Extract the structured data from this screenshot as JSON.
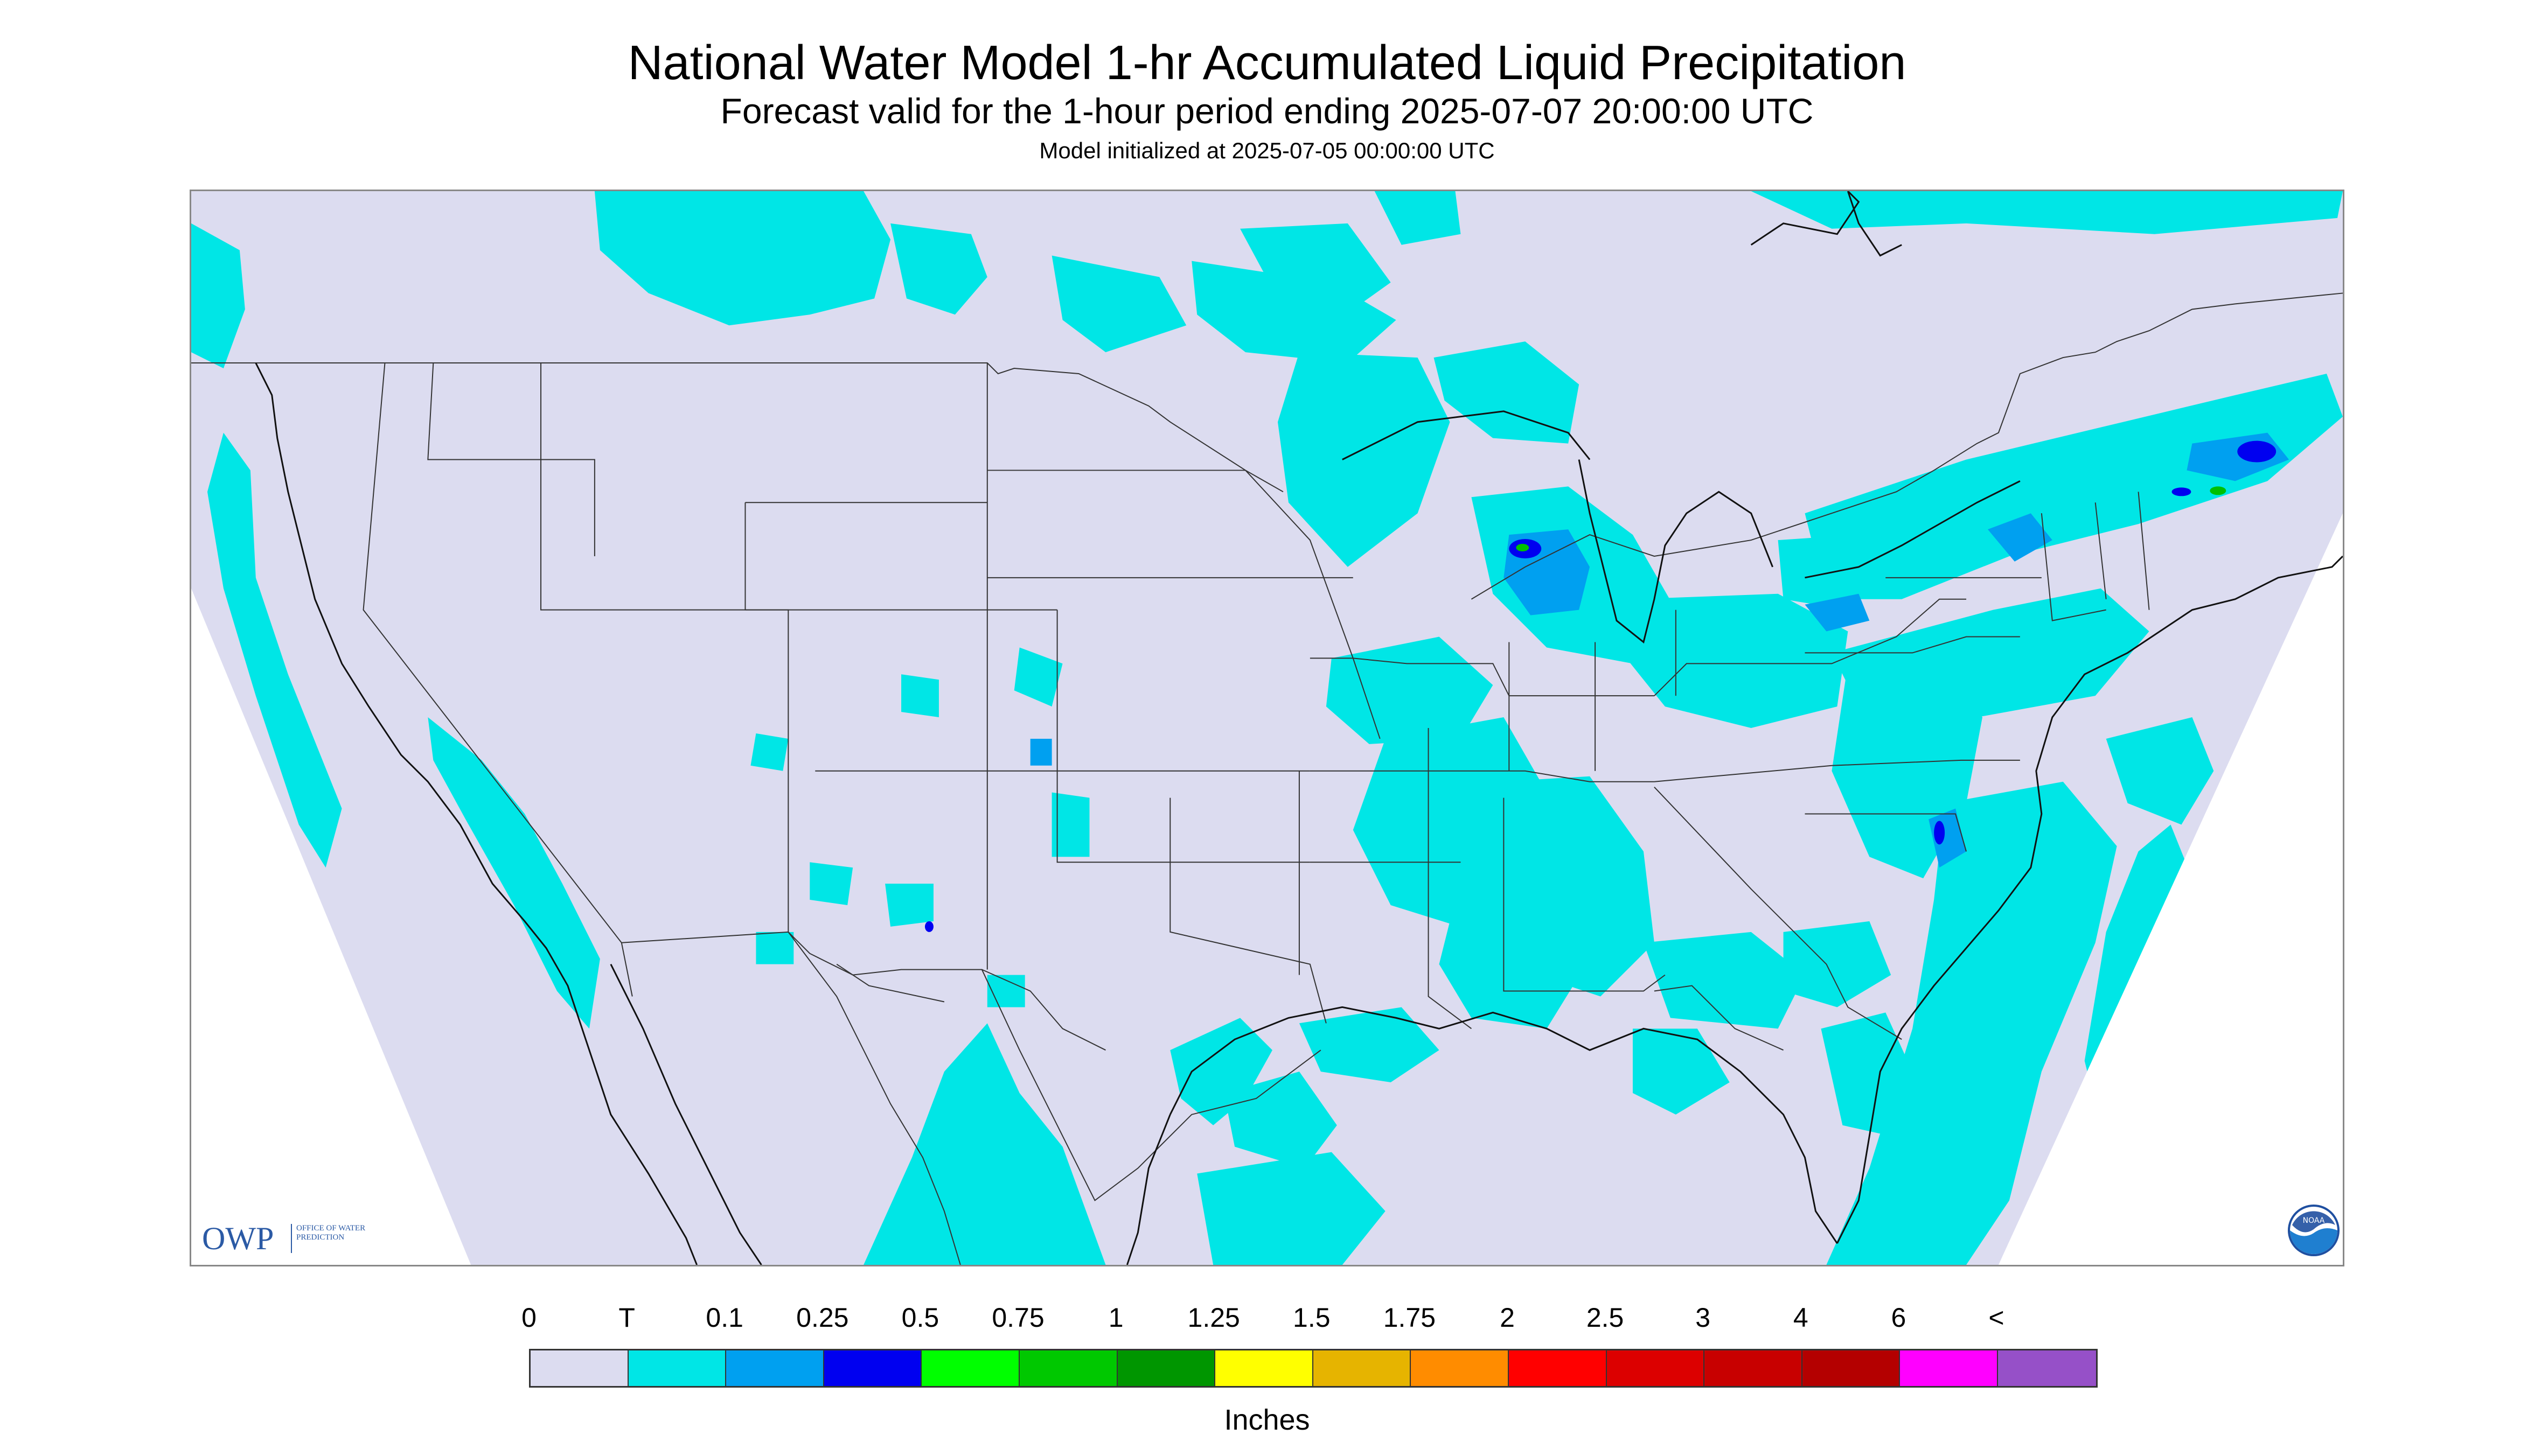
{
  "header": {
    "title": "National Water Model 1-hr Accumulated Liquid Precipitation",
    "subtitle": "Forecast valid for the 1-hour period ending 2025-07-07 20:00:00 UTC",
    "init_line": "Model initialized at 2025-07-05 00:00:00 UTC"
  },
  "map": {
    "background_color": "#dcdcf0",
    "outside_domain_color": "#ffffff",
    "boundary_line_color": "#333333",
    "precip_colors": {
      "trace": "#00e6e6",
      "light": "#00a0f0",
      "moderate": "#0000f0",
      "heavy": "#00c000"
    }
  },
  "logos": {
    "owp_text": "OWP",
    "owp_subtext": "OFFICE OF WATER PREDICTION",
    "noaa_text": "NOAA"
  },
  "legend": {
    "labels": [
      "0",
      "T",
      "0.1",
      "0.25",
      "0.5",
      "0.75",
      "1",
      "1.25",
      "1.5",
      "1.75",
      "2",
      "2.5",
      "3",
      "4",
      "6",
      "<"
    ],
    "colors": [
      "#dcdcf0",
      "#00e6e6",
      "#00a0f0",
      "#0000f0",
      "#00ff00",
      "#00c800",
      "#009600",
      "#ffff00",
      "#e6b400",
      "#ff8c00",
      "#ff0000",
      "#dc0000",
      "#c80000",
      "#b40000",
      "#ff00ff",
      "#9650c8"
    ],
    "units": "Inches"
  }
}
